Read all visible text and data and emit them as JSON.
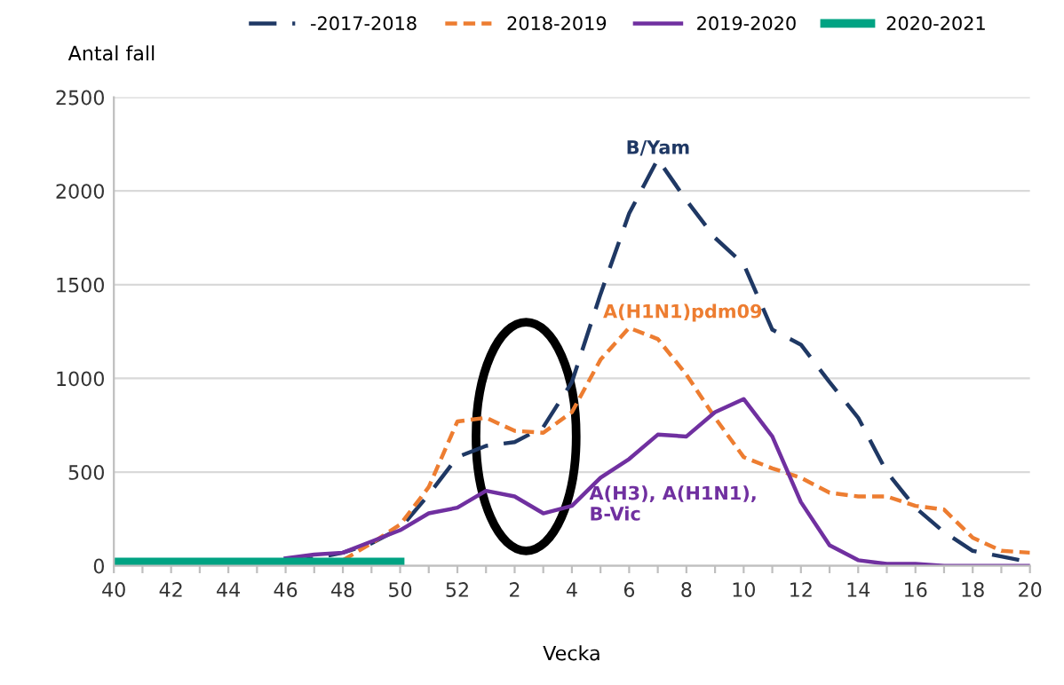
{
  "chart_data": {
    "type": "line",
    "xlabel": "Vecka",
    "ylabel": "Antal fall",
    "categories": [
      "40",
      null,
      "42",
      null,
      "44",
      null,
      "46",
      null,
      "48",
      null,
      "50",
      null,
      "52",
      null,
      "2",
      null,
      "4",
      null,
      "6",
      null,
      "8",
      null,
      "10",
      null,
      "12",
      null,
      "14",
      null,
      "16",
      null,
      "18",
      null,
      "20"
    ],
    "series": [
      {
        "name": "-2017-2018",
        "color": "#1f3864",
        "line_style": "dashed",
        "values": [
          null,
          null,
          null,
          null,
          null,
          null,
          20,
          40,
          70,
          120,
          200,
          380,
          580,
          640,
          660,
          740,
          980,
          1450,
          1880,
          2170,
          1950,
          1750,
          1610,
          1260,
          1180,
          980,
          790,
          500,
          310,
          180,
          80,
          50,
          20
        ]
      },
      {
        "name": "2018-2019",
        "color": "#ed7d31",
        "line_style": "dotted",
        "values": [
          null,
          null,
          null,
          null,
          null,
          null,
          null,
          null,
          30,
          120,
          220,
          420,
          770,
          790,
          720,
          710,
          820,
          1100,
          1270,
          1210,
          1020,
          790,
          580,
          520,
          470,
          390,
          370,
          370,
          320,
          300,
          150,
          80,
          70
        ]
      },
      {
        "name": "2019-2020",
        "color": "#7030a0",
        "line_style": "solid",
        "values": [
          null,
          null,
          null,
          null,
          null,
          null,
          40,
          60,
          70,
          130,
          190,
          280,
          310,
          400,
          370,
          280,
          320,
          470,
          570,
          700,
          690,
          820,
          890,
          690,
          340,
          110,
          30,
          10,
          10,
          0,
          0,
          0,
          0
        ]
      },
      {
        "name": "2020-2021",
        "color": "#00a383",
        "line_style": "solid",
        "values": [
          20,
          20,
          20,
          20,
          20,
          20,
          20,
          20,
          20,
          20,
          20,
          null,
          null,
          null,
          null,
          null,
          null,
          null,
          null,
          null,
          null,
          null,
          null,
          null,
          null,
          null,
          null,
          null,
          null,
          null,
          null,
          null,
          null
        ]
      }
    ],
    "ylim": [
      0,
      2500
    ],
    "yticks": [
      0,
      500,
      1000,
      1500,
      2000,
      2500
    ],
    "grid": "y",
    "legend": "top",
    "marker": "none",
    "annotations": [
      "B/Yam",
      "A(H1N1)pdm09",
      "A(H3), A(H1N1),\nB-Vic"
    ]
  }
}
